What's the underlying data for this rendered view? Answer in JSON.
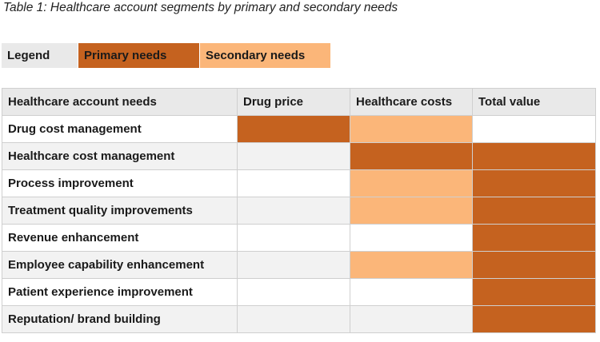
{
  "caption": "Table 1: Healthcare account segments by primary and secondary needs",
  "legend": {
    "label": "Legend",
    "primary_label": "Primary needs",
    "secondary_label": "Secondary needs",
    "primary_color": "#c5621f",
    "secondary_color": "#fbb679"
  },
  "table": {
    "headers": [
      "Healthcare account needs",
      "Drug price",
      "Healthcare costs",
      "Total value"
    ],
    "rows": [
      {
        "label": "Drug cost management",
        "needs": [
          "primary",
          "secondary",
          "none"
        ]
      },
      {
        "label": "Healthcare cost management",
        "needs": [
          "none",
          "primary",
          "primary"
        ]
      },
      {
        "label": "Process improvement",
        "needs": [
          "none",
          "secondary",
          "primary"
        ]
      },
      {
        "label": "Treatment quality improvements",
        "needs": [
          "none",
          "secondary",
          "primary"
        ]
      },
      {
        "label": "Revenue enhancement",
        "needs": [
          "none",
          "none",
          "primary"
        ]
      },
      {
        "label": "Employee capability enhancement",
        "needs": [
          "none",
          "secondary",
          "primary"
        ]
      },
      {
        "label": "Patient experience improvement",
        "needs": [
          "none",
          "none",
          "primary"
        ]
      },
      {
        "label": "Reputation/ brand building",
        "needs": [
          "none",
          "none",
          "primary"
        ]
      }
    ]
  }
}
